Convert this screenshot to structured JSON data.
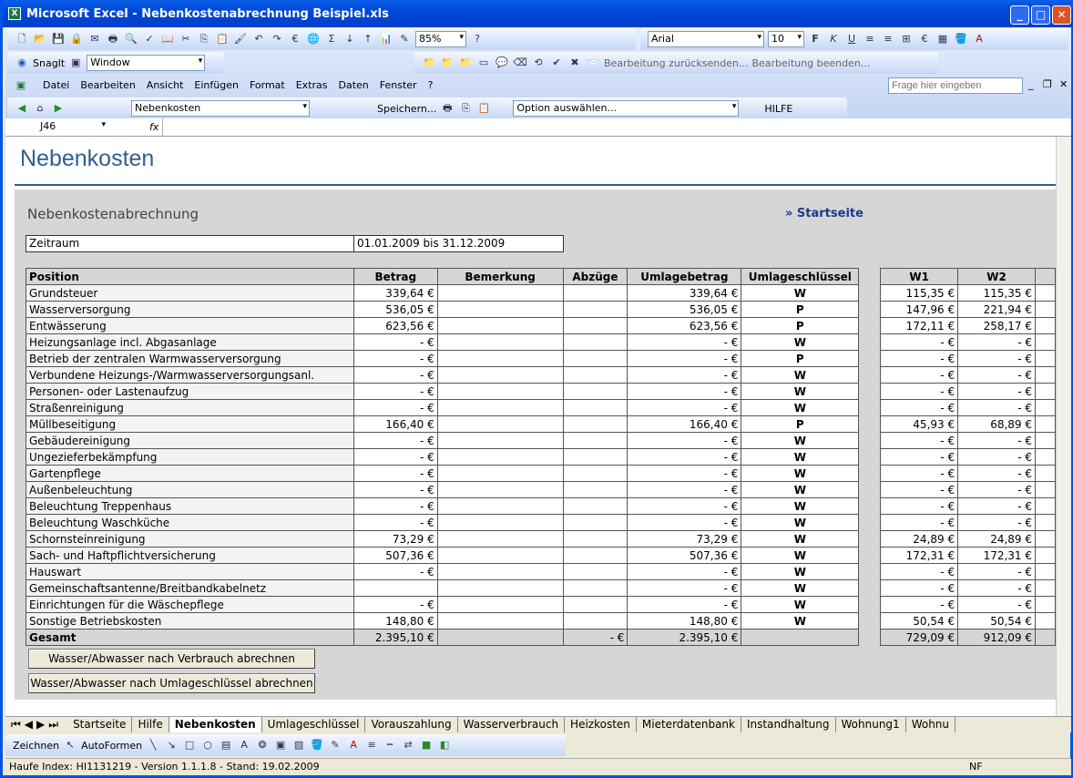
{
  "window": {
    "title": "Microsoft Excel - Nebenkostenabrechnung Beispiel.xls"
  },
  "toolbar": {
    "zoom": "85%",
    "font": "Arial",
    "size": "10",
    "snagit": "SnagIt",
    "snagit_combo": "Window",
    "review1": "Bearbeitung zurücksenden...",
    "review2": "Bearbeitung beenden...",
    "help_placeholder": "Frage hier eingeben"
  },
  "menu": [
    "Datei",
    "Bearbeiten",
    "Ansicht",
    "Einfügen",
    "Format",
    "Extras",
    "Daten",
    "Fenster",
    "?"
  ],
  "custom_toolbar": {
    "sheet_combo": "Nebenkosten",
    "save": "Speichern...",
    "option": "Option auswählen...",
    "help": "HILFE"
  },
  "formula_bar": {
    "cell": "J46",
    "fx": "fx",
    "value": ""
  },
  "sheet": {
    "page_title": "Nebenkosten",
    "section_title": "Nebenkostenabrechnung",
    "start_link": "» Startseite",
    "period_label": "Zeitraum",
    "period_value": "01.01.2009 bis 31.12.2009",
    "headers": [
      "Position",
      "Betrag",
      "Bemerkung",
      "Abzüge",
      "Umlagebetrag",
      "Umlageschlüssel",
      "W1",
      "W2"
    ],
    "rows": [
      [
        "Grundsteuer",
        "339,64 €",
        "",
        "",
        "339,64 €",
        "W",
        "115,35 €",
        "115,35 €"
      ],
      [
        "Wasserversorgung",
        "536,05 €",
        "",
        "",
        "536,05 €",
        "P",
        "147,96 €",
        "221,94 €"
      ],
      [
        "Entwässerung",
        "623,56 €",
        "",
        "",
        "623,56 €",
        "P",
        "172,11 €",
        "258,17 €"
      ],
      [
        "Heizungsanlage incl. Abgasanlage",
        "-   €",
        "",
        "",
        "-   €",
        "W",
        "-   €",
        "-   €"
      ],
      [
        "Betrieb der zentralen Warmwasserversorgung",
        "-   €",
        "",
        "",
        "-   €",
        "P",
        "-   €",
        "-   €"
      ],
      [
        "Verbundene Heizungs-/Warmwasserversorgungsanl.",
        "-   €",
        "",
        "",
        "-   €",
        "W",
        "-   €",
        "-   €"
      ],
      [
        "Personen- oder Lastenaufzug",
        "-   €",
        "",
        "",
        "-   €",
        "W",
        "-   €",
        "-   €"
      ],
      [
        "Straßenreinigung",
        "-   €",
        "",
        "",
        "-   €",
        "W",
        "-   €",
        "-   €"
      ],
      [
        "Müllbeseitigung",
        "166,40 €",
        "",
        "",
        "166,40 €",
        "P",
        "45,93 €",
        "68,89 €"
      ],
      [
        "Gebäudereinigung",
        "-   €",
        "",
        "",
        "-   €",
        "W",
        "-   €",
        "-   €"
      ],
      [
        "Ungezieferbekämpfung",
        "-   €",
        "",
        "",
        "-   €",
        "W",
        "-   €",
        "-   €"
      ],
      [
        "Gartenpflege",
        "-   €",
        "",
        "",
        "-   €",
        "W",
        "-   €",
        "-   €"
      ],
      [
        "Außenbeleuchtung",
        "-   €",
        "",
        "",
        "-   €",
        "W",
        "-   €",
        "-   €"
      ],
      [
        "Beleuchtung Treppenhaus",
        "-   €",
        "",
        "",
        "-   €",
        "W",
        "-   €",
        "-   €"
      ],
      [
        "Beleuchtung Waschküche",
        "-   €",
        "",
        "",
        "-   €",
        "W",
        "-   €",
        "-   €"
      ],
      [
        "Schornsteinreinigung",
        "73,29 €",
        "",
        "",
        "73,29 €",
        "W",
        "24,89 €",
        "24,89 €"
      ],
      [
        "Sach- und Haftpflichtversicherung",
        "507,36 €",
        "",
        "",
        "507,36 €",
        "W",
        "172,31 €",
        "172,31 €"
      ],
      [
        "Hauswart",
        "-   €",
        "",
        "",
        "-   €",
        "W",
        "-   €",
        "-   €"
      ],
      [
        "Gemeinschaftsantenne/Breitbandkabelnetz",
        "",
        "",
        "",
        "-   €",
        "W",
        "-   €",
        "-   €"
      ],
      [
        "Einrichtungen für die Wäschepflege",
        "-   €",
        "",
        "",
        "-   €",
        "W",
        "-   €",
        "-   €"
      ],
      [
        "Sonstige Betriebskosten",
        "148,80 €",
        "",
        "",
        "148,80 €",
        "W",
        "50,54 €",
        "50,54 €"
      ]
    ],
    "total": [
      "Gesamt",
      "2.395,10 €",
      "",
      "-   €",
      "2.395,10 €",
      "",
      "729,09 €",
      "912,09 €"
    ],
    "button1": "Wasser/Abwasser nach Verbrauch abrechnen",
    "button2": "Wasser/Abwasser nach Umlageschlüssel abrechnen"
  },
  "tabs": [
    "Startseite",
    "Hilfe",
    "Nebenkosten",
    "Umlageschlüssel",
    "Vorauszahlung",
    "Wasserverbrauch",
    "Heizkosten",
    "Mieterdatenbank",
    "Instandhaltung",
    "Wohnung1",
    "Wohnu"
  ],
  "active_tab": "Nebenkosten",
  "drawing": {
    "draw": "Zeichnen",
    "autoshapes": "AutoFormen"
  },
  "status": {
    "text": "Haufe Index: HI1131219 - Version 1.1.1.8 - Stand: 19.02.2009",
    "mode": "NF"
  }
}
